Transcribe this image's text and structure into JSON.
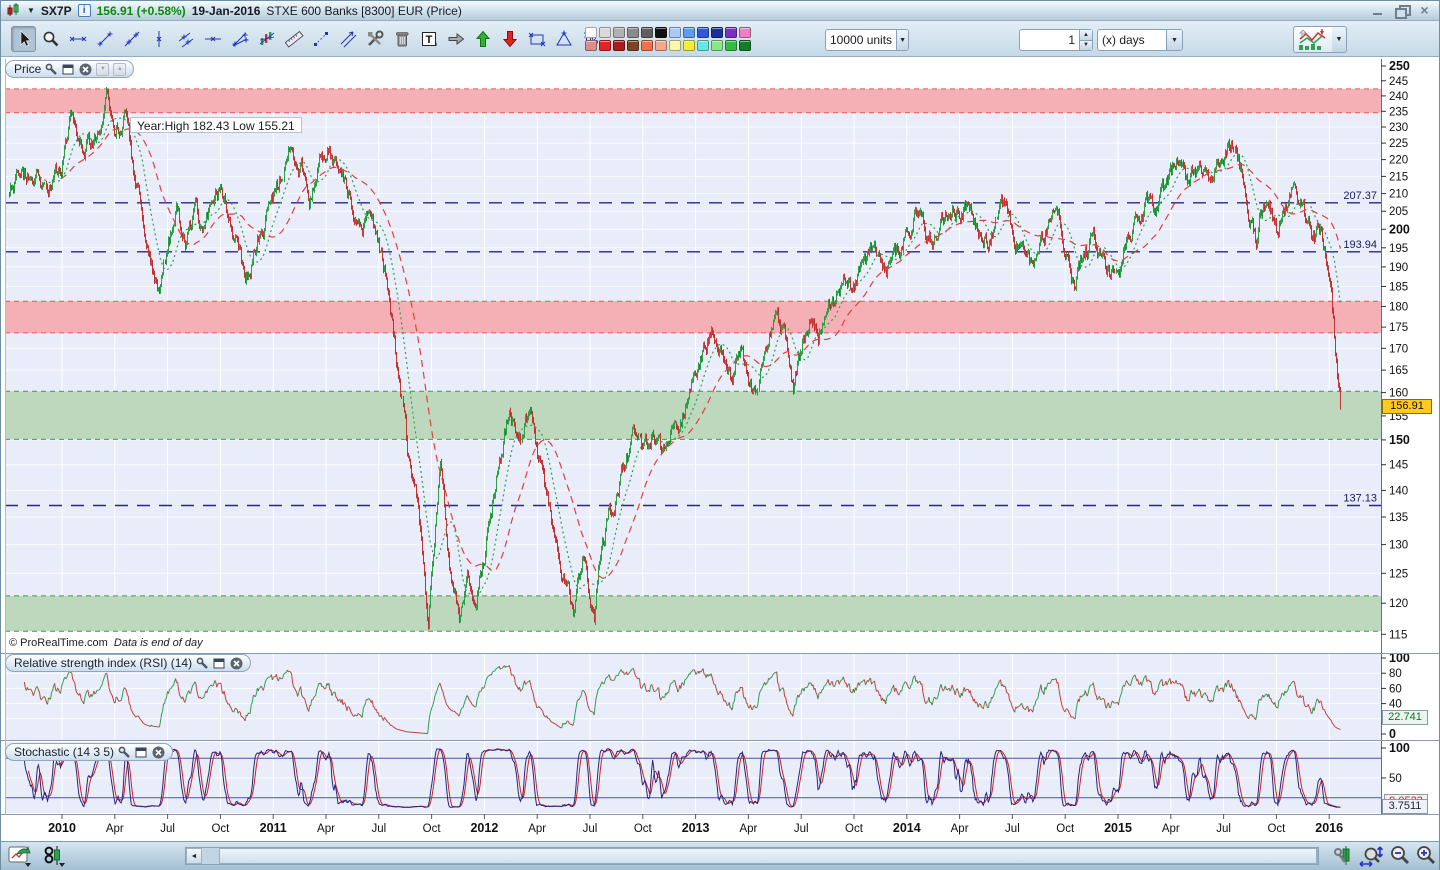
{
  "title_bar": {
    "symbol": "SX7P",
    "price": "156.91",
    "change": "(+0.58%)",
    "date": "19-Jan-2016",
    "description": "STXE 600 Banks [8300] EUR (Price)",
    "info_glyph": "i"
  },
  "toolbar": {
    "tools": [
      {
        "name": "cursor",
        "selected": true
      },
      {
        "name": "zoom",
        "selected": false
      },
      {
        "name": "horizontal-segment",
        "selected": false
      },
      {
        "name": "segment",
        "selected": false
      },
      {
        "name": "line",
        "selected": false
      },
      {
        "name": "vertical-line",
        "selected": false
      },
      {
        "name": "channel",
        "selected": false
      },
      {
        "name": "horizontal-line",
        "selected": false
      },
      {
        "name": "fan-lines",
        "selected": false
      },
      {
        "name": "pattern-analysis",
        "selected": false
      },
      {
        "name": "ruler",
        "selected": false
      },
      {
        "name": "points",
        "selected": false
      },
      {
        "name": "parallel-line",
        "selected": false
      },
      {
        "name": "drawing-tools",
        "selected": false
      },
      {
        "name": "trash",
        "selected": false
      },
      {
        "name": "text",
        "selected": false
      },
      {
        "name": "arrow-right",
        "selected": false
      },
      {
        "name": "arrow-up",
        "selected": false
      },
      {
        "name": "arrow-down",
        "selected": false
      },
      {
        "name": "rectangle",
        "selected": false
      },
      {
        "name": "triangle",
        "selected": false
      },
      {
        "name": "percent-measure",
        "selected": false
      }
    ],
    "palette_row1": [
      "#ffffff",
      "#d9d9d9",
      "#b0b0b0",
      "#8a8a8a",
      "#5f5f5f",
      "#111111",
      "#aac8f8",
      "#5e9bf2",
      "#3356dd",
      "#1b2f9e",
      "#7a2fc4",
      "#f27fc4"
    ],
    "palette_row2": [
      "#dd8c8c",
      "#e82222",
      "#a81c1c",
      "#7a4522",
      "#f2714d",
      "#f5a888",
      "#f8f8a8",
      "#f2ee33",
      "#66e8e0",
      "#88e888",
      "#33bb44",
      "#157a2a"
    ],
    "units_select": "10000 units",
    "interval_value": "1",
    "interval_unit": "(x) days",
    "dropdown_glyph": "▼",
    "spin_up": "▲",
    "spin_down": "▼"
  },
  "panels": {
    "price": {
      "label": "Price",
      "info": "Year:High 182.43 Low 155.21",
      "watermark": "© ProRealTime.com",
      "watermark_note": "Data is end of day",
      "tag": "156.91"
    },
    "rsi": {
      "label": "Relative strength index (RSI) (14)",
      "tag": "22.741"
    },
    "stoch": {
      "label": "Stochastic (14 3 5)",
      "tag_k": "9.0523",
      "tag_d": "3.7511"
    }
  },
  "bottom_bar": {
    "icons_left": [
      "new-chart-window",
      "linked-instrument"
    ],
    "icons_right": [
      "chart-settings",
      "zoom-range",
      "zoom-out",
      "zoom-in"
    ],
    "scroll_left_glyph": "◄",
    "scroll_right_glyph": "►"
  },
  "chart_data": {
    "type": "candlestick",
    "title": "SX7P STXE 600 Banks [8300] EUR (Price), daily",
    "y_scale": "log",
    "y_ticks": [
      115,
      120,
      125,
      130,
      135,
      140,
      145,
      150,
      155,
      160,
      165,
      170,
      175,
      180,
      185,
      190,
      195,
      200,
      205,
      210,
      215,
      220,
      225,
      230,
      235,
      240,
      245,
      250
    ],
    "y_bold_ticks": [
      150,
      200,
      250
    ],
    "last_price": 156.91,
    "year_high": 182.43,
    "year_low": 155.21,
    "levels": [
      {
        "value": 207.37,
        "label": "207.37"
      },
      {
        "value": 193.94,
        "label": "193.94"
      },
      {
        "value": 137.13,
        "label": "137.13"
      }
    ],
    "zones": [
      {
        "from": 234.5,
        "to": 242.3,
        "kind": "resistance",
        "fill": "#f4b0b4",
        "border": "#e05a5a"
      },
      {
        "from": 173.6,
        "to": 181.3,
        "kind": "resistance",
        "fill": "#f4b0b4",
        "border": "#e05a5a"
      },
      {
        "from": 150.1,
        "to": 160.3,
        "kind": "support",
        "fill": "#bed8be",
        "border": "#3d9b4c"
      },
      {
        "from": 115.5,
        "to": 121.2,
        "kind": "support",
        "fill": "#bed8be",
        "border": "#3d9b4c"
      }
    ],
    "x_labels": [
      {
        "t": 2010.0,
        "text": "2010",
        "bold": true
      },
      {
        "t": 2010.25,
        "text": "Apr"
      },
      {
        "t": 2010.5,
        "text": "Jul"
      },
      {
        "t": 2010.75,
        "text": "Oct"
      },
      {
        "t": 2011.0,
        "text": "2011",
        "bold": true
      },
      {
        "t": 2011.25,
        "text": "Apr"
      },
      {
        "t": 2011.5,
        "text": "Jul"
      },
      {
        "t": 2011.75,
        "text": "Oct"
      },
      {
        "t": 2012.0,
        "text": "2012",
        "bold": true
      },
      {
        "t": 2012.25,
        "text": "Apr"
      },
      {
        "t": 2012.5,
        "text": "Jul"
      },
      {
        "t": 2012.75,
        "text": "Oct"
      },
      {
        "t": 2013.0,
        "text": "2013",
        "bold": true
      },
      {
        "t": 2013.25,
        "text": "Apr"
      },
      {
        "t": 2013.5,
        "text": "Jul"
      },
      {
        "t": 2013.75,
        "text": "Oct"
      },
      {
        "t": 2014.0,
        "text": "2014",
        "bold": true
      },
      {
        "t": 2014.25,
        "text": "Apr"
      },
      {
        "t": 2014.5,
        "text": "Jul"
      },
      {
        "t": 2014.75,
        "text": "Oct"
      },
      {
        "t": 2015.0,
        "text": "2015",
        "bold": true
      },
      {
        "t": 2015.25,
        "text": "Apr"
      },
      {
        "t": 2015.5,
        "text": "Jul"
      },
      {
        "t": 2015.75,
        "text": "Oct"
      },
      {
        "t": 2016.0,
        "text": "2016",
        "bold": true
      }
    ],
    "price_anchors": [
      [
        2009.75,
        210
      ],
      [
        2009.83,
        216
      ],
      [
        2009.92,
        212
      ],
      [
        2010.0,
        220
      ],
      [
        2010.04,
        236
      ],
      [
        2010.1,
        222
      ],
      [
        2010.17,
        228
      ],
      [
        2010.21,
        238
      ],
      [
        2010.25,
        230
      ],
      [
        2010.3,
        234
      ],
      [
        2010.33,
        220
      ],
      [
        2010.38,
        205
      ],
      [
        2010.45,
        182
      ],
      [
        2010.5,
        196
      ],
      [
        2010.54,
        204
      ],
      [
        2010.58,
        198
      ],
      [
        2010.63,
        206
      ],
      [
        2010.67,
        198
      ],
      [
        2010.71,
        206
      ],
      [
        2010.75,
        212
      ],
      [
        2010.79,
        204
      ],
      [
        2010.87,
        186
      ],
      [
        2010.92,
        196
      ],
      [
        2011.0,
        208
      ],
      [
        2011.04,
        216
      ],
      [
        2011.08,
        224
      ],
      [
        2011.13,
        218
      ],
      [
        2011.17,
        210
      ],
      [
        2011.21,
        220
      ],
      [
        2011.25,
        224
      ],
      [
        2011.33,
        214
      ],
      [
        2011.42,
        200
      ],
      [
        2011.46,
        206
      ],
      [
        2011.5,
        196
      ],
      [
        2011.54,
        186
      ],
      [
        2011.58,
        170
      ],
      [
        2011.63,
        148
      ],
      [
        2011.67,
        140
      ],
      [
        2011.71,
        124
      ],
      [
        2011.73,
        116
      ],
      [
        2011.79,
        146
      ],
      [
        2011.83,
        128
      ],
      [
        2011.88,
        115.5
      ],
      [
        2011.92,
        126
      ],
      [
        2011.96,
        120
      ],
      [
        2012.0,
        128
      ],
      [
        2012.04,
        138
      ],
      [
        2012.12,
        156
      ],
      [
        2012.17,
        150
      ],
      [
        2012.21,
        157
      ],
      [
        2012.25,
        146
      ],
      [
        2012.33,
        132
      ],
      [
        2012.38,
        124
      ],
      [
        2012.42,
        118
      ],
      [
        2012.46,
        128
      ],
      [
        2012.52,
        117
      ],
      [
        2012.54,
        126
      ],
      [
        2012.58,
        134
      ],
      [
        2012.63,
        140
      ],
      [
        2012.67,
        146
      ],
      [
        2012.71,
        152
      ],
      [
        2012.75,
        148
      ],
      [
        2012.79,
        152
      ],
      [
        2012.83,
        148
      ],
      [
        2012.88,
        154
      ],
      [
        2012.92,
        152
      ],
      [
        2012.96,
        158
      ],
      [
        2013.0,
        164
      ],
      [
        2013.08,
        176
      ],
      [
        2013.13,
        170
      ],
      [
        2013.17,
        162
      ],
      [
        2013.21,
        170
      ],
      [
        2013.25,
        164
      ],
      [
        2013.29,
        158
      ],
      [
        2013.33,
        170
      ],
      [
        2013.38,
        178
      ],
      [
        2013.42,
        172
      ],
      [
        2013.46,
        162
      ],
      [
        2013.5,
        170
      ],
      [
        2013.54,
        176
      ],
      [
        2013.58,
        172
      ],
      [
        2013.63,
        180
      ],
      [
        2013.67,
        184
      ],
      [
        2013.71,
        188
      ],
      [
        2013.75,
        184
      ],
      [
        2013.79,
        190
      ],
      [
        2013.83,
        194
      ],
      [
        2013.88,
        190
      ],
      [
        2013.92,
        188
      ],
      [
        2013.96,
        194
      ],
      [
        2014.0,
        198
      ],
      [
        2014.06,
        207
      ],
      [
        2014.08,
        200
      ],
      [
        2014.13,
        196
      ],
      [
        2014.17,
        202
      ],
      [
        2014.21,
        206
      ],
      [
        2014.25,
        204
      ],
      [
        2014.29,
        207
      ],
      [
        2014.33,
        200
      ],
      [
        2014.38,
        196
      ],
      [
        2014.42,
        202
      ],
      [
        2014.46,
        206
      ],
      [
        2014.5,
        200
      ],
      [
        2014.54,
        194
      ],
      [
        2014.58,
        190
      ],
      [
        2014.63,
        196
      ],
      [
        2014.67,
        202
      ],
      [
        2014.71,
        206
      ],
      [
        2014.75,
        196
      ],
      [
        2014.79,
        184
      ],
      [
        2014.83,
        192
      ],
      [
        2014.88,
        198
      ],
      [
        2014.92,
        194
      ],
      [
        2014.96,
        188
      ],
      [
        2015.0,
        190
      ],
      [
        2015.04,
        196
      ],
      [
        2015.08,
        202
      ],
      [
        2015.13,
        206
      ],
      [
        2015.17,
        204
      ],
      [
        2015.21,
        210
      ],
      [
        2015.29,
        222
      ],
      [
        2015.33,
        214
      ],
      [
        2015.38,
        218
      ],
      [
        2015.42,
        212
      ],
      [
        2015.46,
        218
      ],
      [
        2015.5,
        222
      ],
      [
        2015.54,
        226
      ],
      [
        2015.58,
        216
      ],
      [
        2015.65,
        196
      ],
      [
        2015.67,
        204
      ],
      [
        2015.71,
        208
      ],
      [
        2015.75,
        200
      ],
      [
        2015.79,
        206
      ],
      [
        2015.83,
        210
      ],
      [
        2015.88,
        204
      ],
      [
        2015.92,
        196
      ],
      [
        2015.96,
        200
      ],
      [
        2016.0,
        190
      ],
      [
        2016.02,
        176
      ],
      [
        2016.04,
        164
      ],
      [
        2016.053,
        156.91
      ]
    ],
    "moving_averages": [
      {
        "period": 50,
        "style": "dashed",
        "color": "#e04040"
      },
      {
        "period": 20,
        "style": "dotted",
        "color": "#2fa052"
      }
    ],
    "indicators": [
      {
        "name": "RSI",
        "params": "14",
        "last": 22.741,
        "range": [
          0,
          100
        ],
        "ticks": [
          0,
          40,
          60,
          80,
          100
        ],
        "bold_ticks": [
          0,
          100
        ]
      },
      {
        "name": "Stochastic",
        "params": "14 3 5",
        "last_k": 9.0523,
        "last_d": 3.7511,
        "range": [
          0,
          100
        ],
        "ticks": [
          50,
          100
        ],
        "bold_ticks": [
          100
        ],
        "level_lines": [
          17,
          83
        ]
      }
    ]
  }
}
